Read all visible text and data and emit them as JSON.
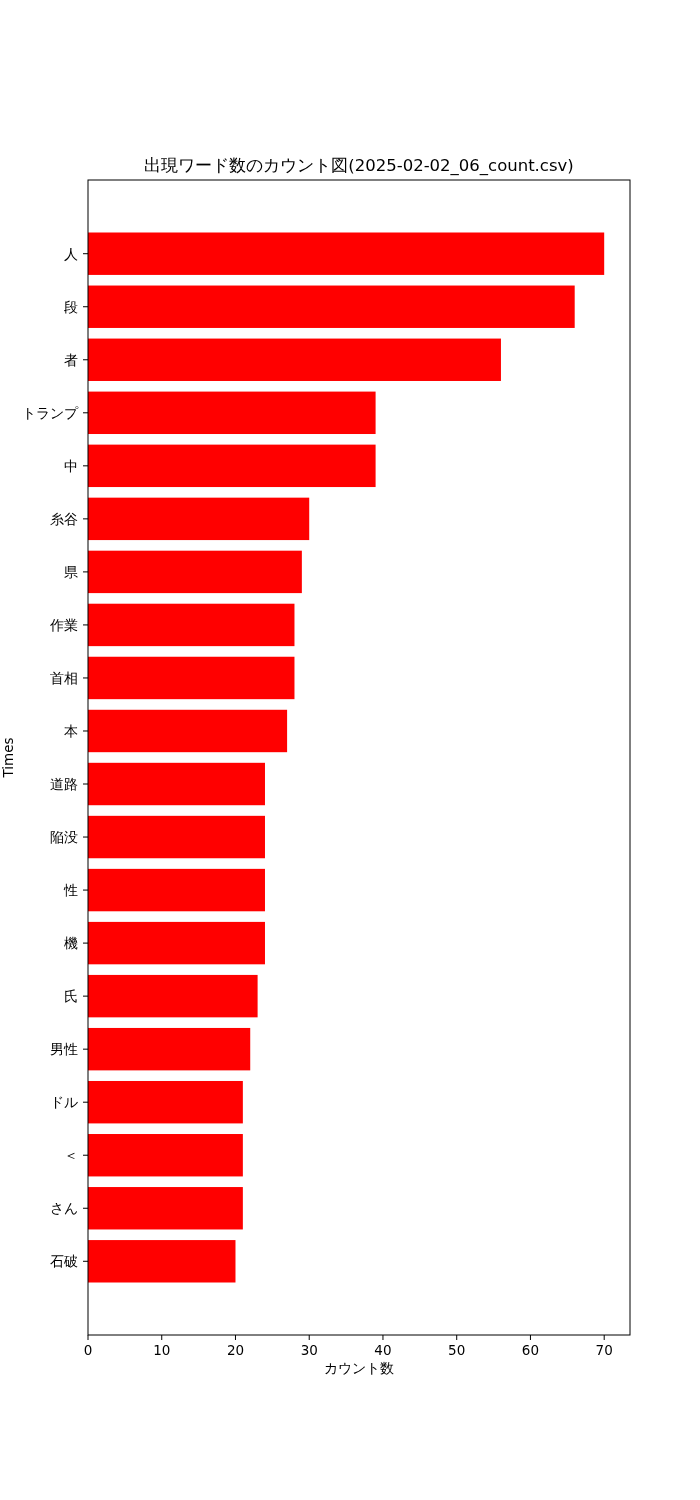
{
  "chart_data": {
    "type": "bar",
    "orientation": "horizontal",
    "title": "出現ワード数のカウント図(2025-02-02_06_count.csv)",
    "xlabel": "カウント数",
    "ylabel": "Times",
    "categories": [
      "人",
      "段",
      "者",
      "トランプ",
      "中",
      "糸谷",
      "県",
      "作業",
      "首相",
      "本",
      "道路",
      "陥没",
      "性",
      "機",
      "氏",
      "男性",
      "ドル",
      "＜",
      "さん",
      "石破"
    ],
    "values": [
      70,
      66,
      56,
      39,
      39,
      30,
      29,
      28,
      28,
      27,
      24,
      24,
      24,
      24,
      23,
      22,
      21,
      21,
      21,
      20
    ],
    "color": "#ff0000",
    "xlim": [
      0,
      73.5
    ],
    "xticks": [
      0,
      10,
      20,
      30,
      40,
      50,
      60,
      70
    ]
  }
}
